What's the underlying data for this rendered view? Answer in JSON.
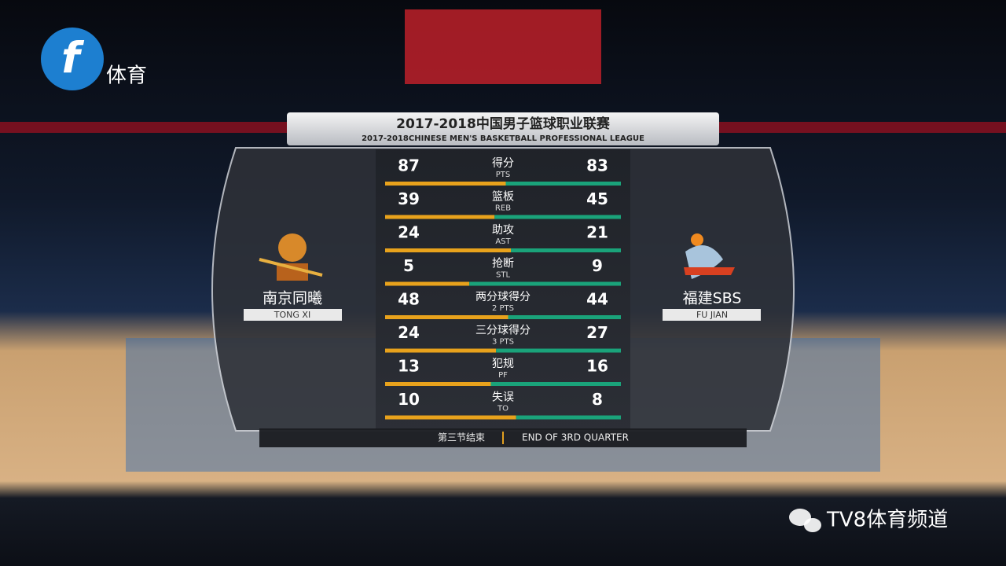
{
  "channel": {
    "name": "体育"
  },
  "header": {
    "title": "2017-2018中国男子篮球职业联赛",
    "subtitle": "2017-2018CHINESE MEN'S BASKETBALL PROFESSIONAL LEAGUE"
  },
  "teams": [
    {
      "name": "南京同曦",
      "label": "TONG XI"
    },
    {
      "name": "福建SBS",
      "label": "FU JIAN"
    }
  ],
  "stats": [
    {
      "label": "得分",
      "label_en": "PTS",
      "home": 87,
      "away": 83
    },
    {
      "label": "篮板",
      "label_en": "REB",
      "home": 39,
      "away": 45
    },
    {
      "label": "助攻",
      "label_en": "AST",
      "home": 24,
      "away": 21
    },
    {
      "label": "抢断",
      "label_en": "STL",
      "home": 5,
      "away": 9
    },
    {
      "label": "两分球得分",
      "label_en": "2 PTS",
      "home": 48,
      "away": 44
    },
    {
      "label": "三分球得分",
      "label_en": "3 PTS",
      "home": 24,
      "away": 27
    },
    {
      "label": "犯规",
      "label_en": "PF",
      "home": 13,
      "away": 16
    },
    {
      "label": "失误",
      "label_en": "TO",
      "home": 10,
      "away": 8
    }
  ],
  "status": {
    "cn": "第三节结束",
    "en": "END OF 3RD QUARTER"
  },
  "watermark": "TV8体育频道"
}
